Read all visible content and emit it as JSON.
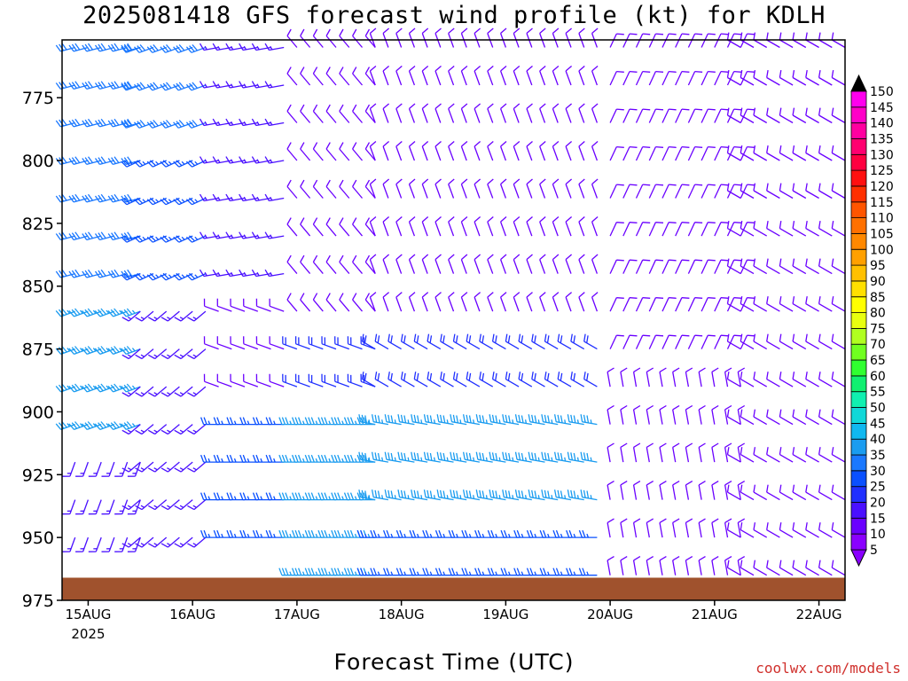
{
  "chart_data": {
    "type": "wind-barb-profile",
    "title": "2025081418 GFS forecast wind profile (kt) for KDLH",
    "xlabel": "Forecast Time (UTC)",
    "ylabel": "",
    "y_ticks": [
      "775",
      "800",
      "825",
      "850",
      "875",
      "900",
      "925",
      "950",
      "975"
    ],
    "y_tick_values": [
      775,
      800,
      825,
      850,
      875,
      900,
      925,
      950,
      975
    ],
    "ylim": [
      975,
      752
    ],
    "x_ticks": [
      "15AUG",
      "16AUG",
      "17AUG",
      "18AUG",
      "19AUG",
      "20AUG",
      "21AUG",
      "22AUG"
    ],
    "x_tick_hours": [
      0,
      24,
      48,
      72,
      96,
      120,
      144,
      168
    ],
    "x_sublabel": "2025",
    "xlim_hours": [
      -6,
      174
    ],
    "time_step_hours": 3,
    "pressure_levels": [
      755,
      770,
      785,
      800,
      815,
      830,
      845,
      860,
      875,
      890,
      905,
      920,
      935,
      950,
      965
    ],
    "colorbar": {
      "levels": [
        5,
        10,
        15,
        20,
        25,
        30,
        35,
        40,
        45,
        50,
        55,
        60,
        65,
        70,
        75,
        80,
        85,
        90,
        95,
        100,
        105,
        110,
        115,
        120,
        125,
        130,
        135,
        140,
        145,
        150
      ],
      "colors": [
        "#8a00ff",
        "#6a00ff",
        "#4a10ff",
        "#2030ff",
        "#0a50ff",
        "#1a78ff",
        "#1a9cf0",
        "#10b8f0",
        "#10d8d8",
        "#10f0b0",
        "#10f070",
        "#30ff30",
        "#70ff20",
        "#b0ff20",
        "#e8ff10",
        "#ffff00",
        "#ffe000",
        "#ffc000",
        "#ffa000",
        "#ff8800",
        "#ff7000",
        "#ff5500",
        "#ff3000",
        "#ff1010",
        "#ff0040",
        "#ff0070",
        "#ff00a0",
        "#ff00c8",
        "#ff00ee",
        "#ee00ff"
      ],
      "max_color": "#000000",
      "min_color": "#8a00ff"
    },
    "terrain_color": "#a0522d",
    "barb_note": "barbs per level and forecast time, speed in kt, direction from which wind blows",
    "series": [
      {
        "hours": [
          -3,
          12
        ],
        "levels": [
          755,
          770,
          785,
          800,
          815,
          830,
          845
        ],
        "dir": 255,
        "speed": 30
      },
      {
        "hours": [
          -3,
          12
        ],
        "levels": [
          860,
          875,
          890,
          905
        ],
        "dir": 250,
        "speed": 35
      },
      {
        "hours": [
          -3,
          12
        ],
        "levels": [
          920,
          935,
          950
        ],
        "dir": 200,
        "speed": 15
      },
      {
        "hours": [
          12,
          27
        ],
        "levels": [
          755,
          770,
          785
        ],
        "dir": 250,
        "speed": 30
      },
      {
        "hours": [
          12,
          27
        ],
        "levels": [
          800,
          815,
          830,
          845
        ],
        "dir": 245,
        "speed": 25
      },
      {
        "hours": [
          12,
          27
        ],
        "levels": [
          860,
          875,
          890,
          905,
          920,
          935,
          950
        ],
        "dir": 230,
        "speed": 15
      },
      {
        "hours": [
          30,
          45
        ],
        "levels": [
          755,
          770,
          785,
          800,
          815,
          830,
          845
        ],
        "dir": 260,
        "speed": 15
      },
      {
        "hours": [
          30,
          45
        ],
        "levels": [
          860,
          875,
          890
        ],
        "dir": 290,
        "speed": 10
      },
      {
        "hours": [
          30,
          45
        ],
        "levels": [
          905,
          920,
          935,
          950
        ],
        "dir": 270,
        "speed": 25
      },
      {
        "hours": [
          48,
          66
        ],
        "levels": [
          755,
          770,
          785,
          800,
          815,
          830,
          845,
          860
        ],
        "dir": 320,
        "speed": 10
      },
      {
        "hours": [
          48,
          66
        ],
        "levels": [
          875,
          890
        ],
        "dir": 290,
        "speed": 20
      },
      {
        "hours": [
          48,
          66
        ],
        "levels": [
          905,
          920,
          935,
          950,
          965
        ],
        "dir": 270,
        "speed": 35
      },
      {
        "hours": [
          66,
          117
        ],
        "levels": [
          755,
          770,
          785,
          800
        ],
        "dir": 340,
        "speed": 10
      },
      {
        "hours": [
          66,
          117
        ],
        "levels": [
          815,
          830,
          845,
          860
        ],
        "dir": 340,
        "speed": 10
      },
      {
        "hours": [
          66,
          117
        ],
        "levels": [
          875,
          890
        ],
        "dir": 300,
        "speed": 20
      },
      {
        "hours": [
          66,
          117
        ],
        "levels": [
          905,
          920,
          935
        ],
        "dir": 280,
        "speed": 35
      },
      {
        "hours": [
          66,
          117
        ],
        "levels": [
          950,
          965
        ],
        "dir": 270,
        "speed": 25
      },
      {
        "hours": [
          120,
          150
        ],
        "levels": [
          755,
          770,
          785,
          800,
          815,
          830,
          845,
          860,
          875
        ],
        "dir": 25,
        "speed": 10
      },
      {
        "hours": [
          120,
          150
        ],
        "levels": [
          890,
          905,
          920,
          935,
          950,
          965
        ],
        "dir": 350,
        "speed": 10
      },
      {
        "hours": [
          150,
          174
        ],
        "levels": [
          755,
          770,
          785,
          800,
          815,
          830,
          845,
          860,
          875,
          890,
          905,
          920,
          935,
          950,
          965
        ],
        "dir": 300,
        "speed": 10
      }
    ]
  },
  "page": {
    "title": "2025081418 GFS forecast wind profile (kt) for KDLH",
    "xlabel": "Forecast Time (UTC)",
    "credit": "coolwx.com/models"
  }
}
